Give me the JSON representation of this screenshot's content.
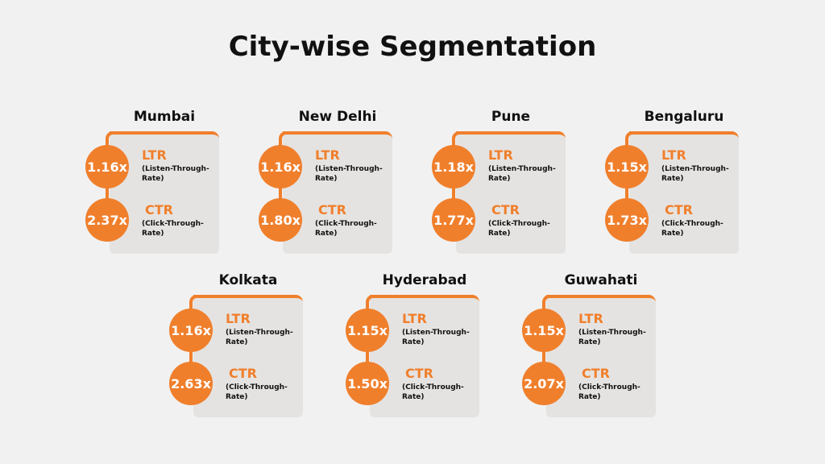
{
  "title": "City-wise Segmentation",
  "metric_labels": {
    "ltr": "LTR",
    "ltr_sub": "(Listen-Through-Rate)",
    "ctr": "CTR",
    "ctr_sub": "(Click-Through-Rate)"
  },
  "colors": {
    "accent": "#f07f2c",
    "card": "#e5e3e1",
    "background": "#f1f1f1"
  },
  "cities": [
    {
      "name": "Mumbai",
      "ltr": "1.16x",
      "ctr": "2.37x"
    },
    {
      "name": "New Delhi",
      "ltr": "1.16x",
      "ctr": "1.80x"
    },
    {
      "name": "Pune",
      "ltr": "1.18x",
      "ctr": "1.77x"
    },
    {
      "name": "Bengaluru",
      "ltr": "1.15x",
      "ctr": "1.73x"
    },
    {
      "name": "Kolkata",
      "ltr": "1.16x",
      "ctr": "2.63x"
    },
    {
      "name": "Hyderabad",
      "ltr": "1.15x",
      "ctr": "1.50x"
    },
    {
      "name": "Guwahati",
      "ltr": "1.15x",
      "ctr": "2.07x"
    }
  ]
}
